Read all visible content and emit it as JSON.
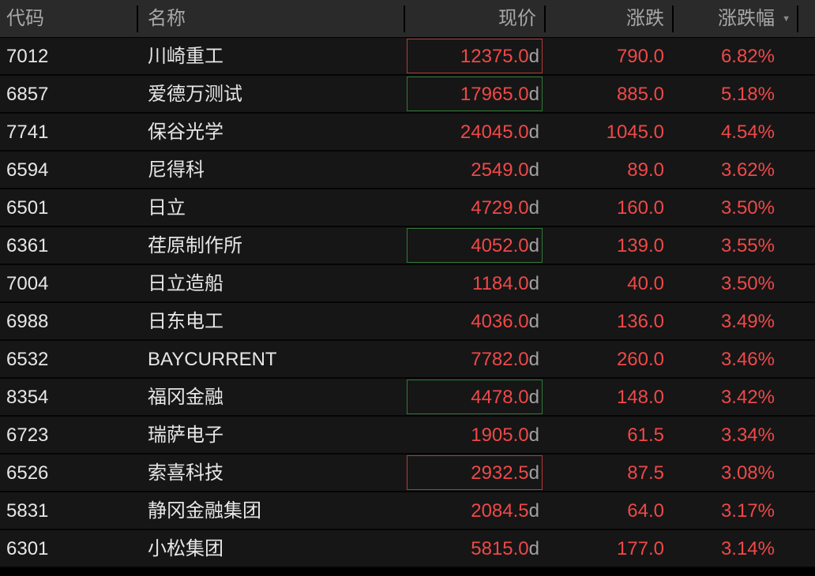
{
  "columns": {
    "code": "代码",
    "name": "名称",
    "price": "现价",
    "change": "涨跌",
    "pct": "涨跌幅",
    "sort_icon": "triangle-down-icon"
  },
  "colors": {
    "up": "#f04848",
    "flash_up_border": "#b23a36",
    "flash_down_border": "#2f7a38",
    "header_bg": "#2a2a2a",
    "row_bg": "#161616"
  },
  "price_suffix": "d",
  "rows": [
    {
      "code": "7012",
      "name": "川崎重工",
      "price": "12375.0",
      "change": "790.0",
      "pct": "6.82%",
      "flash": "up"
    },
    {
      "code": "6857",
      "name": "爱德万测试",
      "price": "17965.0",
      "change": "885.0",
      "pct": "5.18%",
      "flash": "down"
    },
    {
      "code": "7741",
      "name": "保谷光学",
      "price": "24045.0",
      "change": "1045.0",
      "pct": "4.54%",
      "flash": ""
    },
    {
      "code": "6594",
      "name": "尼得科",
      "price": "2549.0",
      "change": "89.0",
      "pct": "3.62%",
      "flash": ""
    },
    {
      "code": "6501",
      "name": "日立",
      "price": "4729.0",
      "change": "160.0",
      "pct": "3.50%",
      "flash": ""
    },
    {
      "code": "6361",
      "name": "荏原制作所",
      "price": "4052.0",
      "change": "139.0",
      "pct": "3.55%",
      "flash": "down"
    },
    {
      "code": "7004",
      "name": "日立造船",
      "price": "1184.0",
      "change": "40.0",
      "pct": "3.50%",
      "flash": ""
    },
    {
      "code": "6988",
      "name": "日东电工",
      "price": "4036.0",
      "change": "136.0",
      "pct": "3.49%",
      "flash": ""
    },
    {
      "code": "6532",
      "name": "BAYCURRENT",
      "price": "7782.0",
      "change": "260.0",
      "pct": "3.46%",
      "flash": ""
    },
    {
      "code": "8354",
      "name": "福冈金融",
      "price": "4478.0",
      "change": "148.0",
      "pct": "3.42%",
      "flash": "down"
    },
    {
      "code": "6723",
      "name": "瑞萨电子",
      "price": "1905.0",
      "change": "61.5",
      "pct": "3.34%",
      "flash": ""
    },
    {
      "code": "6526",
      "name": "索喜科技",
      "price": "2932.5",
      "change": "87.5",
      "pct": "3.08%",
      "flash": "up"
    },
    {
      "code": "5831",
      "name": "静冈金融集团",
      "price": "2084.5",
      "change": "64.0",
      "pct": "3.17%",
      "flash": ""
    },
    {
      "code": "6301",
      "name": "小松集团",
      "price": "5815.0",
      "change": "177.0",
      "pct": "3.14%",
      "flash": ""
    }
  ]
}
